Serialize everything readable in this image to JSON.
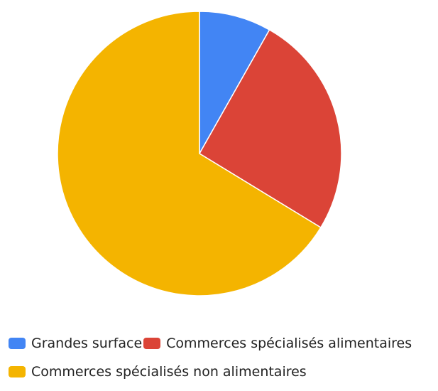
{
  "chart_data": {
    "type": "pie",
    "title": "",
    "slices": [
      {
        "label": "Grandes surface",
        "value": 8.2,
        "color": "#4285F4"
      },
      {
        "label": "Commerces spécialisés alimentaires",
        "value": 25.5,
        "color": "#DB4437"
      },
      {
        "label": "Commerces spécialisés non alimentaires",
        "value": 66.3,
        "color": "#F4B400"
      }
    ],
    "legend_position": "bottom"
  }
}
